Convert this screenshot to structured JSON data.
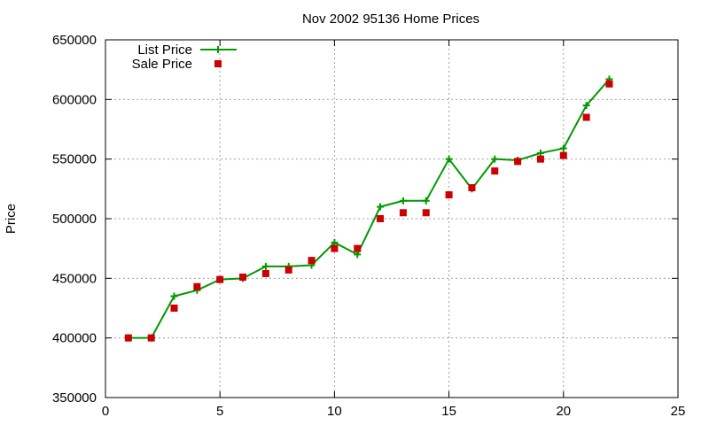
{
  "chart_data": {
    "type": "line",
    "title": "Nov 2002 95136 Home Prices",
    "xlabel": "",
    "ylabel": "Price",
    "xlim": [
      0,
      25
    ],
    "ylim": [
      350000,
      650000
    ],
    "x_ticks": [
      0,
      5,
      10,
      15,
      20,
      25
    ],
    "y_ticks": [
      350000,
      400000,
      450000,
      500000,
      550000,
      600000,
      650000
    ],
    "grid": true,
    "legend_position": "top-left",
    "series": [
      {
        "name": "List Price",
        "style": "line-plus",
        "color": "#009900",
        "x": [
          1,
          2,
          3,
          4,
          5,
          6,
          7,
          8,
          9,
          10,
          11,
          12,
          13,
          14,
          15,
          16,
          17,
          18,
          19,
          20,
          21,
          22
        ],
        "y": [
          400000,
          400000,
          435000,
          440000,
          449000,
          450000,
          460000,
          460000,
          461000,
          480000,
          470000,
          510000,
          515000,
          515000,
          550000,
          525000,
          550000,
          549000,
          555000,
          559000,
          595000,
          617000
        ]
      },
      {
        "name": "Sale Price",
        "style": "square",
        "color": "#cc0000",
        "x": [
          1,
          2,
          3,
          4,
          5,
          6,
          7,
          8,
          9,
          10,
          11,
          12,
          13,
          14,
          15,
          16,
          17,
          18,
          19,
          20,
          21,
          22
        ],
        "y": [
          400000,
          400000,
          425000,
          443000,
          449000,
          451000,
          454000,
          457000,
          465000,
          475000,
          475000,
          500000,
          505000,
          505000,
          520000,
          526000,
          540000,
          548000,
          550000,
          553000,
          585000,
          613000
        ]
      }
    ]
  }
}
